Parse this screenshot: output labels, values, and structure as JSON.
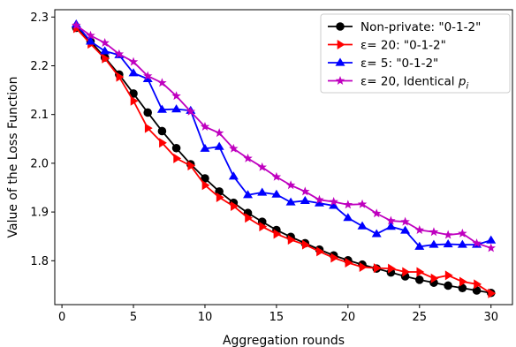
{
  "chart_data": {
    "type": "line",
    "title": "",
    "xlabel": "Aggregation rounds",
    "ylabel": "Value of the Loss Function",
    "xlim": [
      -0.5,
      31.5
    ],
    "ylim": [
      1.71,
      2.315
    ],
    "xticks": [
      0,
      5,
      10,
      15,
      20,
      25,
      30
    ],
    "xtick_labels": [
      "0",
      "5",
      "10",
      "15",
      "20",
      "25",
      "30"
    ],
    "yticks": [
      1.8,
      1.9,
      2.0,
      2.1,
      2.2,
      2.3
    ],
    "ytick_labels": [
      "1.8",
      "1.9",
      "2.0",
      "2.1",
      "2.2",
      "2.3"
    ],
    "grid": false,
    "legend_position": "top-right",
    "x": [
      1,
      2,
      3,
      4,
      5,
      6,
      7,
      8,
      9,
      10,
      11,
      12,
      13,
      14,
      15,
      16,
      17,
      18,
      19,
      20,
      21,
      22,
      23,
      24,
      25,
      26,
      27,
      28,
      29,
      30
    ],
    "series": [
      {
        "name": "Non-private: \"0-1-2\"",
        "color": "#000000",
        "marker": "circle",
        "values": [
          2.278,
          2.25,
          2.217,
          2.182,
          2.143,
          2.104,
          2.066,
          2.031,
          1.998,
          1.969,
          1.942,
          1.919,
          1.898,
          1.88,
          1.863,
          1.849,
          1.836,
          1.823,
          1.811,
          1.801,
          1.792,
          1.784,
          1.776,
          1.768,
          1.761,
          1.755,
          1.749,
          1.744,
          1.739,
          1.734
        ]
      },
      {
        "name": "ε= 20: \"0-1-2\"",
        "color": "#ff0000",
        "marker": "triangle-right",
        "values": [
          2.277,
          2.245,
          2.215,
          2.177,
          2.128,
          2.072,
          2.042,
          2.01,
          1.995,
          1.955,
          1.93,
          1.912,
          1.888,
          1.87,
          1.855,
          1.843,
          1.833,
          1.819,
          1.806,
          1.796,
          1.787,
          1.785,
          1.784,
          1.777,
          1.777,
          1.764,
          1.77,
          1.757,
          1.752,
          1.733
        ]
      },
      {
        "name": "ε= 5: \"0-1-2\"",
        "color": "#0000ff",
        "marker": "triangle-up",
        "values": [
          2.285,
          2.25,
          2.23,
          2.222,
          2.185,
          2.173,
          2.11,
          2.111,
          2.108,
          2.03,
          2.034,
          1.973,
          1.935,
          1.94,
          1.936,
          1.92,
          1.923,
          1.918,
          1.913,
          1.888,
          1.871,
          1.855,
          1.87,
          1.862,
          1.829,
          1.833,
          1.834,
          1.833,
          1.833,
          1.842
        ]
      },
      {
        "name": "ε= 20, Identical p_i",
        "color": "#bf00bf",
        "marker": "star",
        "values": [
          2.283,
          2.262,
          2.247,
          2.224,
          2.208,
          2.179,
          2.165,
          2.138,
          2.106,
          2.075,
          2.062,
          2.03,
          2.01,
          1.992,
          1.972,
          1.955,
          1.942,
          1.925,
          1.921,
          1.915,
          1.916,
          1.897,
          1.882,
          1.88,
          1.863,
          1.859,
          1.853,
          1.856,
          1.836,
          1.826
        ]
      }
    ]
  }
}
